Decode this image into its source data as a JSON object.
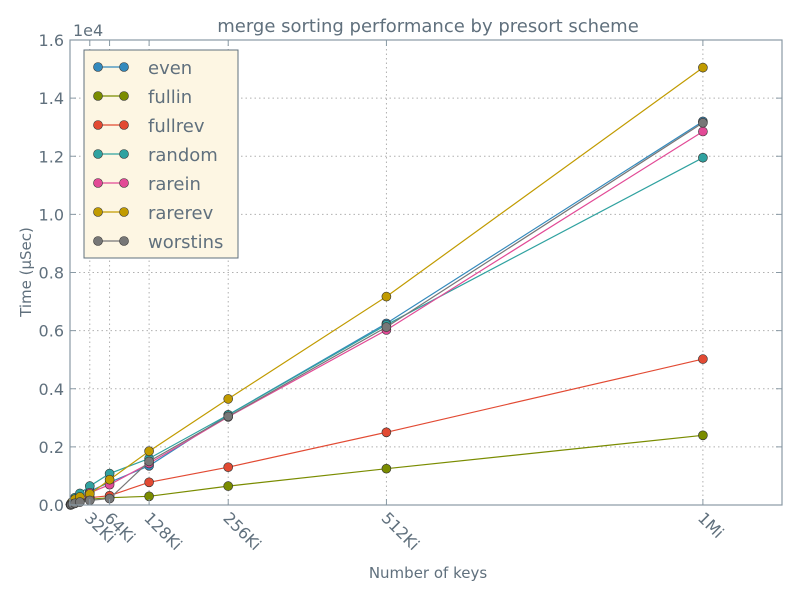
{
  "chart_data": {
    "type": "line",
    "title": "merge sorting performance by presort scheme",
    "xlabel": "Number of keys",
    "ylabel": "Time (μSec)",
    "y_offset_label": "1e4",
    "xlim": [
      0,
      1179648
    ],
    "ylim": [
      0,
      16000
    ],
    "grid": true,
    "legend_position": "top-left",
    "x": [
      1024,
      2048,
      4096,
      8192,
      16384,
      32768,
      65536,
      131072,
      262144,
      524288,
      1048576
    ],
    "x_tick_values": [
      32768,
      65536,
      131072,
      262144,
      524288,
      1048576
    ],
    "x_tick_labels": [
      "32Ki",
      "64Ki",
      "128Ki",
      "256Ki",
      "512Ki",
      "1Mi"
    ],
    "y_tick_values": [
      0,
      2000,
      4000,
      6000,
      8000,
      10000,
      12000,
      14000,
      16000
    ],
    "y_tick_labels": [
      "0.0",
      "0.2",
      "0.4",
      "0.6",
      "0.8",
      "1.0",
      "1.2",
      "1.4",
      "1.6"
    ],
    "series": [
      {
        "name": "even",
        "color": "#348abd",
        "values": [
          10,
          25,
          55,
          120,
          200,
          480,
          780,
          1350,
          3100,
          6250,
          13200
        ]
      },
      {
        "name": "fullin",
        "color": "#7a8c00",
        "values": [
          8,
          18,
          40,
          80,
          150,
          200,
          250,
          300,
          650,
          1250,
          2400
        ]
      },
      {
        "name": "fullrev",
        "color": "#e24a33",
        "values": [
          10,
          20,
          50,
          100,
          170,
          250,
          320,
          780,
          1300,
          2500,
          5020
        ]
      },
      {
        "name": "random",
        "color": "#30a2a0",
        "values": [
          20,
          60,
          120,
          250,
          400,
          650,
          1080,
          1600,
          3100,
          6200,
          11950
        ]
      },
      {
        "name": "rarein",
        "color": "#e24a96",
        "values": [
          10,
          25,
          55,
          110,
          200,
          420,
          700,
          1430,
          3030,
          6020,
          12850
        ]
      },
      {
        "name": "rarerev",
        "color": "#c19b00",
        "values": [
          25,
          60,
          110,
          200,
          280,
          380,
          870,
          1850,
          3650,
          7170,
          15050
        ]
      },
      {
        "name": "worstins",
        "color": "#777777",
        "values": [
          5,
          12,
          30,
          60,
          100,
          160,
          220,
          1500,
          3050,
          6120,
          13150
        ]
      }
    ]
  }
}
